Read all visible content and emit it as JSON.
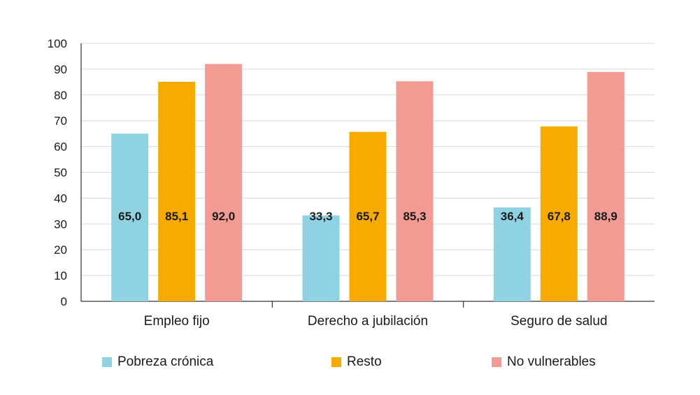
{
  "chart_data": {
    "type": "bar",
    "title": "",
    "xlabel": "",
    "ylabel": "",
    "ylim": [
      0,
      100
    ],
    "yticks": [
      0,
      10,
      20,
      30,
      40,
      50,
      60,
      70,
      80,
      90,
      100
    ],
    "grid": true,
    "legend_position": "bottom",
    "categories": [
      "Empleo fijo",
      "Derecho a jubilación",
      "Seguro de salud"
    ],
    "series": [
      {
        "name": "Pobreza crónica",
        "color": "#8fd3e3",
        "values": [
          65.0,
          33.3,
          36.4
        ],
        "labels": [
          "65,0",
          "33,3",
          "36,4"
        ]
      },
      {
        "name": "Resto",
        "color": "#f7ab00",
        "values": [
          85.1,
          65.7,
          67.8
        ],
        "labels": [
          "85,1",
          "65,7",
          "67,8"
        ]
      },
      {
        "name": "No vulnerables",
        "color": "#f29b92",
        "values": [
          92.0,
          85.3,
          88.9
        ],
        "labels": [
          "92,0",
          "85,3",
          "88,9"
        ]
      }
    ],
    "data_label_value": 33
  }
}
